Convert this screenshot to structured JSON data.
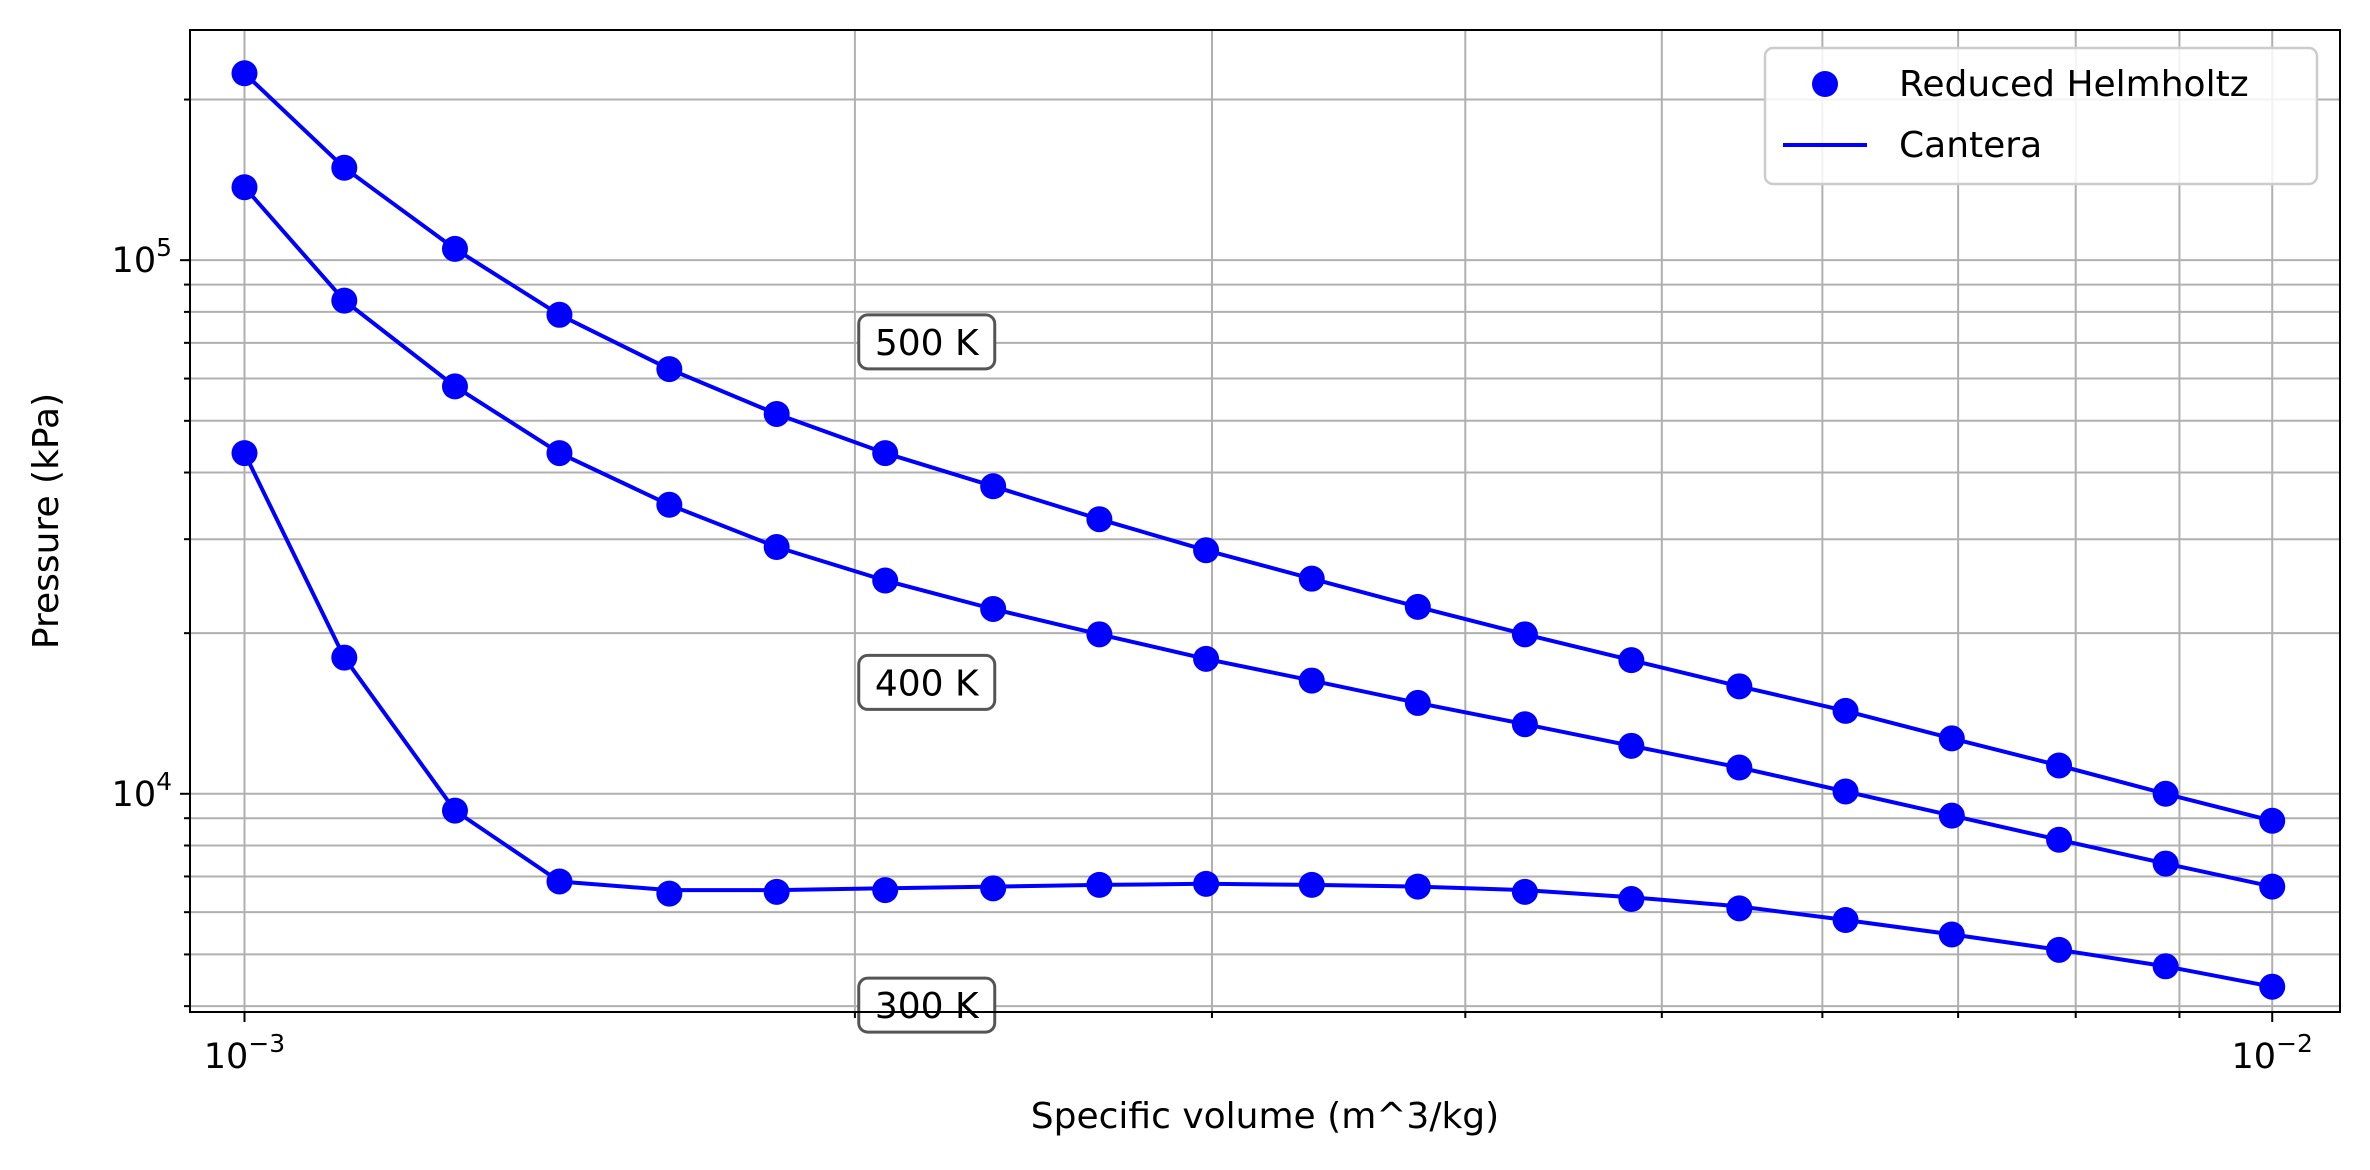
{
  "chart_data": {
    "type": "line",
    "title": "",
    "xlabel": "Specific volume (m^3/kg)",
    "ylabel": "Pressure (kPa)",
    "xscale": "log",
    "yscale": "log",
    "xlim": [
      0.00094,
      0.0108
    ],
    "ylim": [
      3900,
      270000
    ],
    "x_ticks": [
      {
        "value": 0.001,
        "base": "10",
        "exp": "−3"
      },
      {
        "value": 0.01,
        "base": "10",
        "exp": "−2"
      }
    ],
    "y_ticks": [
      {
        "value": 10000,
        "base": "10",
        "exp": "4"
      },
      {
        "value": 100000,
        "base": "10",
        "exp": "5"
      }
    ],
    "grid": true,
    "grid_which": "both",
    "legend_position": "top-right",
    "legend": [
      {
        "label": "Reduced Helmholtz",
        "style": "marker"
      },
      {
        "label": "Cantera",
        "style": "line"
      }
    ],
    "color": "#0000ff",
    "x": [
      0.001,
      0.00112,
      0.00127,
      0.00143,
      0.00162,
      0.00183,
      0.00207,
      0.00234,
      0.00264,
      0.00298,
      0.00336,
      0.00379,
      0.00428,
      0.00483,
      0.00546,
      0.00616,
      0.00695,
      0.00785,
      0.00886,
      0.01
    ],
    "series": [
      {
        "name": "500 K",
        "values": [
          224000,
          149000,
          105000,
          79000,
          62500,
          51500,
          43500,
          37700,
          32700,
          28600,
          25300,
          22400,
          19900,
          17800,
          15900,
          14300,
          12700,
          11300,
          10000,
          8900
        ]
      },
      {
        "name": "400 K",
        "values": [
          137000,
          84000,
          58000,
          43500,
          34800,
          29000,
          25100,
          22200,
          19900,
          17900,
          16300,
          14800,
          13500,
          12300,
          11200,
          10100,
          9100,
          8200,
          7400,
          6700
        ]
      },
      {
        "name": "300 K",
        "values": [
          43500,
          18000,
          9300,
          6850,
          6600,
          6600,
          6650,
          6700,
          6750,
          6780,
          6750,
          6700,
          6600,
          6400,
          6150,
          5800,
          5450,
          5100,
          4750,
          4350
        ],
        "marker_values": [
          43500,
          18000,
          9300,
          6850,
          6500,
          6550,
          6600,
          6650,
          6750,
          6780,
          6750,
          6700,
          6550,
          6350,
          6100,
          5800,
          5450,
          5100,
          4750,
          4350
        ]
      }
    ],
    "annotations": [
      {
        "text": "500 K",
        "x": 0.00217,
        "y": 70000
      },
      {
        "text": "400 K",
        "x": 0.00217,
        "y": 16100
      },
      {
        "text": "300 K",
        "x": 0.00217,
        "y": 4000
      }
    ]
  }
}
